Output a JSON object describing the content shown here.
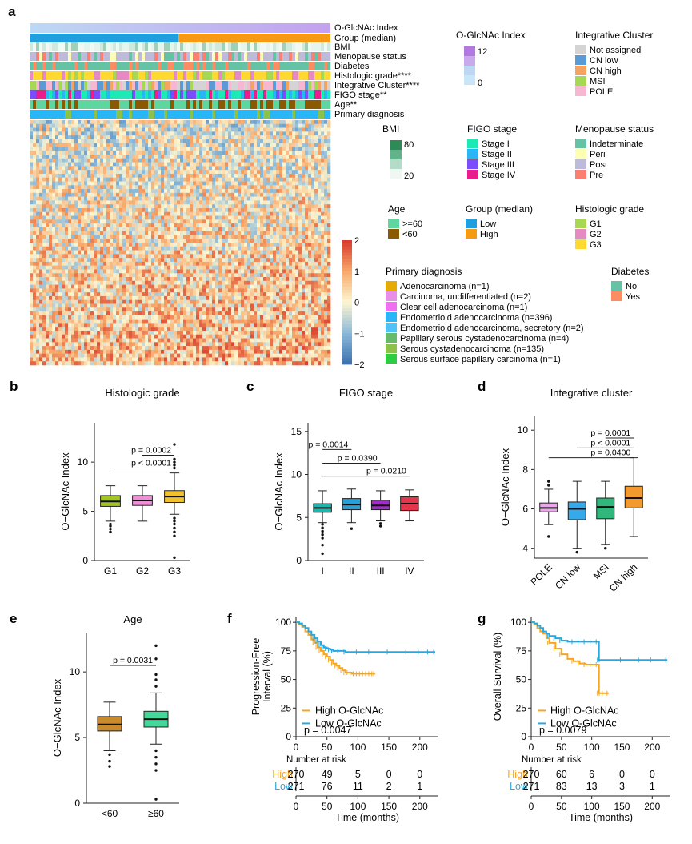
{
  "figure": {
    "panel_labels": [
      "a",
      "b",
      "c",
      "d",
      "e",
      "f",
      "g"
    ]
  },
  "chart_data": [
    {
      "panel": "a",
      "type": "heatmap",
      "annotation_tracks": [
        "O-GlcNAc Index",
        "Group (median)",
        "BMI",
        "Menopause status",
        "Diabetes",
        "Histologic grade****",
        "Integrative Cluster****",
        "FIGO stage**",
        "Age**",
        "Primary diagnosis"
      ],
      "colorbar": {
        "ticks": [
          "2",
          "1",
          "0",
          "−1",
          "−2"
        ],
        "range": [
          -2,
          2
        ]
      },
      "legends": {
        "ogi": {
          "title": "O-GlcNAc Index",
          "ticks": [
            "12",
            "0"
          ],
          "colors": [
            "#b27ae0",
            "#c9a8ec",
            "#bcd6f3",
            "#c9e6f8"
          ]
        },
        "integrative": {
          "title": "Integrative Cluster",
          "items": [
            {
              "label": "Not assigned",
              "color": "#d4d4d4"
            },
            {
              "label": "CN low",
              "color": "#5b9bd5"
            },
            {
              "label": "CN high",
              "color": "#f4a460"
            },
            {
              "label": "MSI",
              "color": "#a6d854"
            },
            {
              "label": "POLE",
              "color": "#f7b6d2"
            }
          ]
        },
        "bmi": {
          "title": "BMI",
          "ticks": [
            "80",
            "20"
          ],
          "colors": [
            "#2e8b57",
            "#63b38a",
            "#b5dcc9",
            "#eef7f2"
          ]
        },
        "figo": {
          "title": "FIGO stage",
          "items": [
            {
              "label": "Stage I",
              "color": "#1de9b6"
            },
            {
              "label": "Stage II",
              "color": "#29b6f6"
            },
            {
              "label": "Stage III",
              "color": "#7c4dff"
            },
            {
              "label": "Stage IV",
              "color": "#e91e8c"
            }
          ]
        },
        "menopause": {
          "title": "Menopause status",
          "items": [
            {
              "label": "Indeterminate",
              "color": "#66c2a5"
            },
            {
              "label": "Peri",
              "color": "#ffffb3"
            },
            {
              "label": "Post",
              "color": "#bebada"
            },
            {
              "label": "Pre",
              "color": "#fb8072"
            }
          ]
        },
        "age": {
          "title": "Age",
          "items": [
            {
              "label": ">=60",
              "color": "#5fd6a0"
            },
            {
              "label": "<60",
              "color": "#8b5a00"
            }
          ]
        },
        "group": {
          "title": "Group (median)",
          "items": [
            {
              "label": "Low",
              "color": "#1f9ee0"
            },
            {
              "label": "High",
              "color": "#f59a12"
            }
          ]
        },
        "grade": {
          "title": "Histologic grade",
          "items": [
            {
              "label": "G1",
              "color": "#a6d854"
            },
            {
              "label": "G2",
              "color": "#e78ac3"
            },
            {
              "label": "G3",
              "color": "#ffd92f"
            }
          ]
        },
        "primary": {
          "title": "Primary diagnosis",
          "items": [
            {
              "label": "Adenocarcinoma (n=1)",
              "color": "#e6ab02"
            },
            {
              "label": "Carcinoma, undifferentiated (n=2)",
              "color": "#e78fe8"
            },
            {
              "label": "Clear cell adenocarcinoma (n=1)",
              "color": "#f06ff0"
            },
            {
              "label": "Endometrioid adenocarcinoma (n=396)",
              "color": "#29b6f6"
            },
            {
              "label": "Endometrioid adenocarcinoma, secretory (n=2)",
              "color": "#4fc3f7"
            },
            {
              "label": "Papillary serous cystadenocarcinoma (n=4)",
              "color": "#66bb6a"
            },
            {
              "label": "Serous cystadenocarcinoma (n=135)",
              "color": "#8bc34a"
            },
            {
              "label": "Serous surface papillary carcinoma (n=1)",
              "color": "#2ecc40"
            }
          ]
        },
        "diabetes": {
          "title": "Diabetes",
          "items": [
            {
              "label": "No",
              "color": "#66c2a5"
            },
            {
              "label": "Yes",
              "color": "#fc8d62"
            }
          ]
        }
      }
    },
    {
      "panel": "b",
      "type": "box",
      "title": "Histologic grade",
      "ylabel": "O−GlcNAc Index",
      "ylim": [
        0,
        14
      ],
      "yticks": [
        0,
        5,
        10
      ],
      "categories": [
        "G1",
        "G2",
        "G3"
      ],
      "colors": [
        "#a2c523",
        "#ee8fd8",
        "#f2c12e"
      ],
      "boxes": [
        {
          "min": 4.0,
          "q1": 5.5,
          "median": 6.0,
          "q3": 6.6,
          "max": 7.6,
          "outliers": [
            3.7,
            3.5,
            3.2,
            2.9
          ]
        },
        {
          "min": 4.0,
          "q1": 5.6,
          "median": 6.1,
          "q3": 6.6,
          "max": 7.6,
          "outliers": []
        },
        {
          "min": 4.7,
          "q1": 5.9,
          "median": 6.5,
          "q3": 7.1,
          "max": 8.9,
          "outliers": [
            9.4,
            9.7,
            10.0,
            10.3,
            11.8,
            4.3,
            4.0,
            3.7,
            3.3,
            2.9,
            2.5,
            0.3
          ]
        }
      ],
      "comparisons": [
        {
          "label": "p = 0.0002",
          "from": 1,
          "to": 2,
          "y": 10.7
        },
        {
          "label": "p < 0.0001",
          "from": 0,
          "to": 2,
          "y": 9.4
        }
      ]
    },
    {
      "panel": "c",
      "type": "box",
      "title": "FIGO stage",
      "ylabel": "O−GlcNAc Index",
      "ylim": [
        0,
        16
      ],
      "yticks": [
        0,
        5,
        10,
        15
      ],
      "categories": [
        "I",
        "II",
        "III",
        "IV"
      ],
      "colors": [
        "#1fb5ad",
        "#2a9fd6",
        "#a12cc6",
        "#e3364b"
      ],
      "boxes": [
        {
          "min": 4.4,
          "q1": 5.6,
          "median": 6.1,
          "q3": 6.6,
          "max": 8.1,
          "outliers": [
            4.2,
            3.8,
            3.4,
            3.0,
            2.6,
            1.8,
            0.8
          ]
        },
        {
          "min": 4.4,
          "q1": 5.9,
          "median": 6.5,
          "q3": 7.2,
          "max": 8.3,
          "outliers": [
            3.7
          ]
        },
        {
          "min": 4.6,
          "q1": 5.9,
          "median": 6.4,
          "q3": 7.0,
          "max": 8.1,
          "outliers": [
            4.3,
            4.0
          ]
        },
        {
          "min": 4.6,
          "q1": 5.8,
          "median": 6.6,
          "q3": 7.4,
          "max": 8.2,
          "outliers": []
        }
      ],
      "comparisons": [
        {
          "label": "p = 0.0014",
          "from": 0,
          "to": 1,
          "y": 12.9
        },
        {
          "label": "p = 0.0390",
          "from": 0,
          "to": 2,
          "y": 11.3
        },
        {
          "label": "p = 0.0210",
          "from": 0,
          "to": 3,
          "y": 9.8
        }
      ]
    },
    {
      "panel": "d",
      "type": "box",
      "title": "Integrative cluster",
      "ylabel": "O−GlcNAc Index",
      "ylim": [
        3.5,
        10.7
      ],
      "yticks": [
        4,
        6,
        8,
        10
      ],
      "categories": [
        "POLE",
        "CN low",
        "MSI",
        "CN high"
      ],
      "colors": [
        "#e9a8e9",
        "#36a9ea",
        "#31b77c",
        "#f29a2e"
      ],
      "boxes": [
        {
          "min": 5.2,
          "q1": 5.85,
          "median": 6.05,
          "q3": 6.3,
          "max": 7.0,
          "outliers": [
            7.2,
            7.4,
            4.6
          ]
        },
        {
          "min": 4.0,
          "q1": 5.45,
          "median": 6.0,
          "q3": 6.35,
          "max": 7.4,
          "outliers": [
            3.8
          ]
        },
        {
          "min": 4.2,
          "q1": 5.5,
          "median": 6.1,
          "q3": 6.55,
          "max": 7.4,
          "outliers": [
            4.0
          ]
        },
        {
          "min": 4.6,
          "q1": 6.05,
          "median": 6.55,
          "q3": 7.15,
          "max": 8.6,
          "outliers": []
        }
      ],
      "comparisons": [
        {
          "label": "p = 0.0001",
          "from": 2,
          "to": 3,
          "y": 9.6
        },
        {
          "label": "p < 0.0001",
          "from": 1,
          "to": 3,
          "y": 9.1
        },
        {
          "label": "p = 0.0400",
          "from": 0,
          "to": 3,
          "y": 8.6
        }
      ]
    },
    {
      "panel": "e",
      "type": "box",
      "title": "Age",
      "ylabel": "O−GlcNAc Index",
      "ylim": [
        0,
        13
      ],
      "yticks": [
        0,
        5,
        10
      ],
      "categories": [
        "<60",
        "≥60"
      ],
      "colors": [
        "#c98a2b",
        "#45d69a"
      ],
      "boxes": [
        {
          "min": 4.0,
          "q1": 5.5,
          "median": 6.0,
          "q3": 6.6,
          "max": 7.7,
          "outliers": [
            3.7,
            3.2,
            2.8
          ]
        },
        {
          "min": 4.5,
          "q1": 5.8,
          "median": 6.4,
          "q3": 7.0,
          "max": 8.4,
          "outliers": [
            8.9,
            9.4,
            9.8,
            11.0,
            12.0,
            4.0,
            3.5,
            3.0,
            2.5,
            0.3
          ]
        }
      ],
      "comparisons": [
        {
          "label": "p = 0.0031",
          "from": 0,
          "to": 1,
          "y": 10.5
        }
      ]
    },
    {
      "panel": "f",
      "type": "line",
      "ylabel": "Progression-Free Interval (%)",
      "xlabel": "Time (months)",
      "xlim": [
        0,
        230
      ],
      "ylim": [
        0,
        105
      ],
      "xticks": [
        0,
        50,
        100,
        150,
        200
      ],
      "yticks": [
        0,
        25,
        50,
        75,
        100
      ],
      "series": [
        {
          "name": "High O-GlcNAc",
          "color": "#f5a623",
          "x": [
            0,
            5,
            10,
            15,
            20,
            25,
            30,
            35,
            40,
            45,
            50,
            55,
            60,
            65,
            70,
            75,
            80,
            85,
            90,
            95,
            100,
            105,
            110,
            115,
            120,
            125,
            128
          ],
          "y": [
            100,
            98,
            96,
            92,
            89,
            85,
            82,
            78,
            75,
            72,
            70,
            67,
            64,
            62,
            60,
            58,
            56,
            56,
            55,
            55,
            55,
            55,
            55,
            55,
            55,
            55,
            55
          ]
        },
        {
          "name": "Low O-GlcNAc",
          "color": "#29a8e0",
          "x": [
            0,
            5,
            10,
            15,
            20,
            25,
            30,
            35,
            40,
            45,
            50,
            55,
            60,
            70,
            80,
            100,
            120,
            150,
            180,
            200,
            215,
            225
          ],
          "y": [
            100,
            99,
            97,
            95,
            92,
            89,
            86,
            83,
            80,
            78,
            77,
            76,
            75,
            75,
            74,
            74,
            74,
            74,
            74,
            74,
            74,
            74
          ]
        }
      ],
      "pvalue": "p = 0.0047",
      "risk_table": {
        "title": "Number at risk",
        "rows": [
          {
            "label": "High",
            "color": "#f5a623",
            "values": [
              "270",
              "49",
              "5",
              "0",
              "0"
            ]
          },
          {
            "label": "Low",
            "color": "#29a8e0",
            "values": [
              "271",
              "76",
              "11",
              "2",
              "1"
            ]
          }
        ],
        "xticks": [
          0,
          50,
          100,
          150,
          200
        ]
      }
    },
    {
      "panel": "g",
      "type": "line",
      "ylabel": "Overall Survival (%)",
      "xlabel": "Time (months)",
      "xlim": [
        0,
        230
      ],
      "ylim": [
        0,
        105
      ],
      "xticks": [
        0,
        50,
        100,
        150,
        200
      ],
      "yticks": [
        0,
        25,
        50,
        75,
        100
      ],
      "series": [
        {
          "name": "High O-GlcNAc",
          "color": "#f5a623",
          "x": [
            0,
            5,
            10,
            15,
            20,
            25,
            30,
            40,
            50,
            60,
            70,
            80,
            90,
            100,
            110,
            112,
            115,
            120,
            128
          ],
          "y": [
            100,
            98,
            95,
            92,
            90,
            86,
            82,
            77,
            72,
            68,
            66,
            64,
            63,
            63,
            63,
            38,
            38,
            38,
            38
          ]
        },
        {
          "name": "Low O-GlcNAc",
          "color": "#29a8e0",
          "x": [
            0,
            5,
            10,
            15,
            20,
            25,
            30,
            40,
            50,
            60,
            70,
            80,
            90,
            100,
            110,
            112,
            115,
            150,
            180,
            200,
            225
          ],
          "y": [
            100,
            99,
            97,
            95,
            92,
            90,
            88,
            86,
            84,
            83,
            83,
            83,
            83,
            83,
            83,
            67,
            67,
            67,
            67,
            67,
            67
          ]
        }
      ],
      "pvalue": "p = 0.0079",
      "risk_table": {
        "title": "Number at risk",
        "rows": [
          {
            "label": "High",
            "color": "#f5a623",
            "values": [
              "270",
              "60",
              "6",
              "0",
              "0"
            ]
          },
          {
            "label": "Low",
            "color": "#29a8e0",
            "values": [
              "271",
              "83",
              "13",
              "3",
              "1"
            ]
          }
        ],
        "xticks": [
          0,
          50,
          100,
          150,
          200
        ]
      }
    }
  ]
}
